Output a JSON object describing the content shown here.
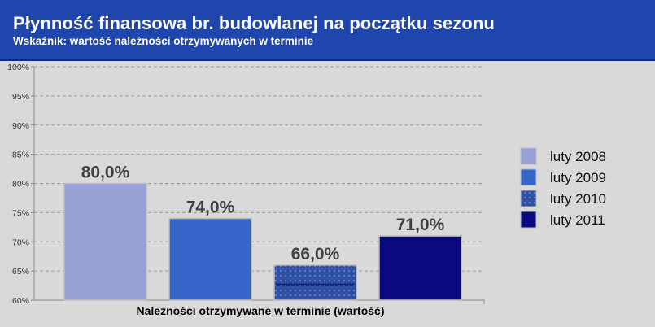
{
  "header": {
    "title": "Płynność finansowa br. budowlanej na początku sezonu",
    "subtitle": "Wskaźnik: wartość należności otrzymywanych w terminie"
  },
  "colors": {
    "header_bg": "#1e46ac",
    "background": "#d9d9d9",
    "series": [
      "#98a1d6",
      "#3565c8",
      "#3050a6",
      "#0a0a80"
    ]
  },
  "chart_data": {
    "type": "bar",
    "title": "Płynność finansowa br. budowlanej na początku sezonu",
    "subtitle": "Wskaźnik: wartość należności otrzymywanych w terminie",
    "xlabel": "Należności otrzymywane w terminie (wartość)",
    "ylabel": "",
    "ylim": [
      60,
      100
    ],
    "yticks": [
      60,
      65,
      70,
      75,
      80,
      85,
      90,
      95,
      100
    ],
    "ytick_labels": [
      "60%",
      "65%",
      "70%",
      "75%",
      "80%",
      "85%",
      "90%",
      "95%",
      "100%"
    ],
    "grid": true,
    "legend_position": "right",
    "categories": [
      "Należności otrzymywane w terminie (wartość)"
    ],
    "series": [
      {
        "name": "luty 2008",
        "values": [
          80.0
        ],
        "label": "80,0%"
      },
      {
        "name": "luty 2009",
        "values": [
          74.0
        ],
        "label": "74,0%"
      },
      {
        "name": "luty 2010",
        "values": [
          66.0
        ],
        "label": "66,0%"
      },
      {
        "name": "luty 2011",
        "values": [
          71.0
        ],
        "label": "71,0%"
      }
    ]
  }
}
